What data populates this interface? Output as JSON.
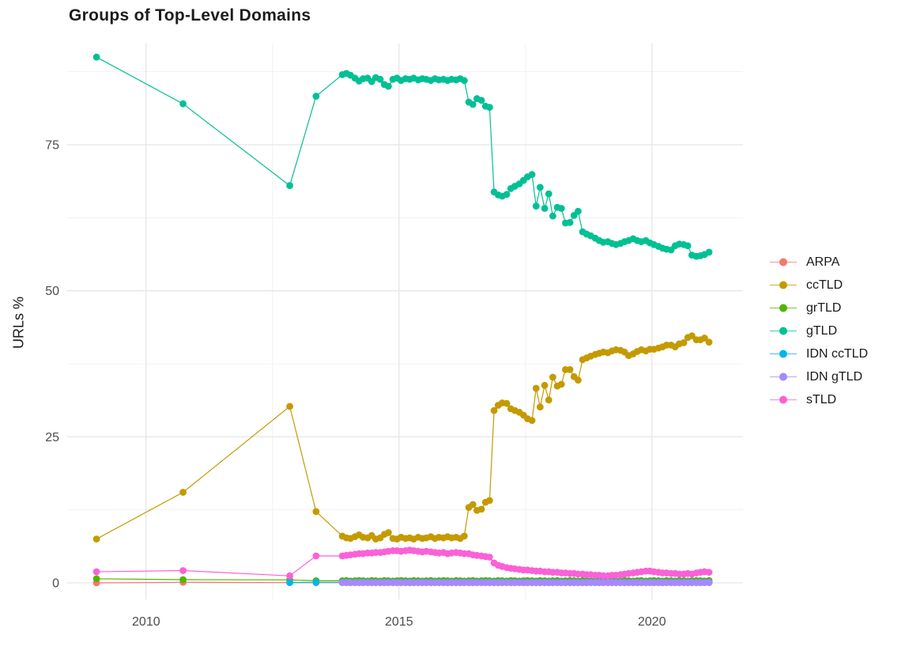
{
  "chart_data": {
    "type": "line",
    "title": "Groups of Top-Level Domains",
    "xlabel": "",
    "ylabel": "URLs %",
    "x_ticks": [
      2010,
      2015,
      2020
    ],
    "y_ticks": [
      0,
      25,
      50,
      75
    ],
    "x_minor": [
      2012.5,
      2017.5
    ],
    "y_minor": [
      12.5,
      37.5,
      62.5,
      87.5
    ],
    "xlim": [
      2008.44,
      2021.8
    ],
    "ylim": [
      -2.84,
      92.33
    ],
    "grid": "major+minor",
    "legend_position": "right",
    "background": "#FFFFFF",
    "grid_major_color": "#E6E6E6",
    "grid_minor_color": "#F1F1F1",
    "x_dense": [
      2013.88,
      2013.96,
      2014.04,
      2014.13,
      2014.21,
      2014.29,
      2014.38,
      2014.46,
      2014.54,
      2014.63,
      2014.71,
      2014.79,
      2014.88,
      2014.96,
      2015.04,
      2015.13,
      2015.21,
      2015.29,
      2015.38,
      2015.46,
      2015.54,
      2015.63,
      2015.71,
      2015.79,
      2015.88,
      2015.96,
      2016.04,
      2016.13,
      2016.21,
      2016.29,
      2016.38,
      2016.46,
      2016.54,
      2016.63,
      2016.71,
      2016.79,
      2016.88,
      2016.96,
      2017.04,
      2017.13,
      2017.21,
      2017.29,
      2017.38,
      2017.46,
      2017.54,
      2017.63,
      2017.71,
      2017.79,
      2017.88,
      2017.96,
      2018.04,
      2018.13,
      2018.21,
      2018.29,
      2018.38,
      2018.46,
      2018.54,
      2018.63,
      2018.71,
      2018.79,
      2018.88,
      2018.96,
      2019.04,
      2019.13,
      2019.21,
      2019.29,
      2019.38,
      2019.46,
      2019.54,
      2019.63,
      2019.71,
      2019.79,
      2019.88,
      2019.96,
      2020.04,
      2020.13,
      2020.21,
      2020.29,
      2020.38,
      2020.46,
      2020.54,
      2020.63,
      2020.71,
      2020.79,
      2020.88,
      2020.96,
      2021.04,
      2021.13
    ],
    "series": [
      {
        "name": "ARPA",
        "color": "#F8766D",
        "x_sparse": [
          2009.02,
          2010.73,
          2012.84,
          2013.36
        ],
        "y_sparse": [
          0.0,
          0.1,
          0.05,
          0.03
        ],
        "y_dense": {
          "const": 0.03,
          "n": 88
        }
      },
      {
        "name": "ccTLD",
        "color": "#C49A00",
        "x_sparse": [
          2009.02,
          2010.73,
          2012.84,
          2013.36
        ],
        "y_sparse": [
          7.5,
          15.5,
          30.2,
          12.2
        ],
        "y_dense": [
          8.0,
          7.7,
          7.6,
          7.9,
          8.2,
          7.8,
          7.7,
          8.1,
          7.5,
          7.7,
          8.3,
          8.6,
          7.6,
          7.5,
          7.8,
          7.6,
          7.7,
          7.5,
          7.8,
          7.6,
          7.7,
          7.9,
          7.6,
          7.8,
          7.7,
          7.9,
          7.7,
          7.8,
          7.6,
          8.0,
          12.9,
          13.4,
          12.4,
          12.6,
          13.8,
          14.1,
          29.5,
          30.4,
          30.8,
          30.7,
          29.8,
          29.5,
          29.2,
          28.7,
          28.1,
          27.8,
          33.3,
          30.1,
          33.8,
          31.3,
          35.2,
          33.7,
          34.0,
          36.5,
          36.5,
          35.3,
          34.7,
          38.2,
          38.5,
          38.8,
          39.1,
          39.3,
          39.5,
          39.4,
          39.7,
          39.9,
          39.8,
          39.5,
          38.9,
          39.2,
          39.6,
          39.9,
          39.7,
          40.0,
          40.0,
          40.2,
          40.4,
          40.7,
          40.7,
          40.4,
          40.9,
          41.1,
          42.0,
          42.3,
          41.6,
          41.6,
          41.9,
          41.2
        ]
      },
      {
        "name": "grTLD",
        "color": "#53B400",
        "x_sparse": [
          2009.02,
          2010.73,
          2012.84,
          2013.36
        ],
        "y_sparse": [
          0.7,
          0.55,
          0.5,
          0.35
        ],
        "y_dense": [
          0.35,
          0.4,
          0.3,
          0.35,
          0.4,
          0.35,
          0.3,
          0.4,
          0.35,
          0.3,
          0.4,
          0.35,
          0.3,
          0.35,
          0.4,
          0.35,
          0.3,
          0.4,
          0.35,
          0.3,
          0.35,
          0.4,
          0.3,
          0.35,
          0.4,
          0.35,
          0.3,
          0.4,
          0.35,
          0.3,
          0.35,
          0.4,
          0.3,
          0.35,
          0.4,
          0.35,
          0.3,
          0.4,
          0.35,
          0.3,
          0.4,
          0.35,
          0.3,
          0.35,
          0.4,
          0.35,
          0.3,
          0.4,
          0.35,
          0.3,
          0.35,
          0.4,
          0.3,
          0.35,
          0.4,
          0.35,
          0.3,
          0.4,
          0.35,
          0.3,
          0.4,
          0.35,
          0.3,
          0.35,
          0.4,
          0.35,
          0.3,
          0.4,
          0.35,
          0.3,
          0.35,
          0.4,
          0.3,
          0.35,
          0.4,
          0.35,
          0.3,
          0.4,
          0.35,
          0.3,
          0.4,
          0.35,
          0.3,
          0.35,
          0.4,
          0.35,
          0.3,
          0.4
        ]
      },
      {
        "name": "gTLD",
        "color": "#00C094",
        "x_sparse": [
          2009.02,
          2010.73,
          2012.84,
          2013.36
        ],
        "y_sparse": [
          90.0,
          82.0,
          68.0,
          83.3
        ],
        "y_dense": [
          87.0,
          87.2,
          86.9,
          86.4,
          85.9,
          86.3,
          86.4,
          85.8,
          86.5,
          86.2,
          85.3,
          85.0,
          86.2,
          86.4,
          86.0,
          86.3,
          86.2,
          86.4,
          86.1,
          86.3,
          86.2,
          86.0,
          86.3,
          86.1,
          86.2,
          86.0,
          86.2,
          86.1,
          86.3,
          86.0,
          82.3,
          81.9,
          82.9,
          82.6,
          81.6,
          81.4,
          66.9,
          66.4,
          66.2,
          66.5,
          67.5,
          67.9,
          68.3,
          68.9,
          69.5,
          69.9,
          64.5,
          67.7,
          64.1,
          66.6,
          62.8,
          64.3,
          64.1,
          61.6,
          61.7,
          62.9,
          63.6,
          60.1,
          59.7,
          59.4,
          59.0,
          58.6,
          58.3,
          58.4,
          58.1,
          57.9,
          58.1,
          58.4,
          58.6,
          58.9,
          58.6,
          58.4,
          58.6,
          58.2,
          57.9,
          57.6,
          57.3,
          57.1,
          57.0,
          57.7,
          58.0,
          57.9,
          57.7,
          56.1,
          55.9,
          56.0,
          56.2,
          56.6
        ]
      },
      {
        "name": "IDN ccTLD",
        "color": "#00B6EB",
        "x_sparse": [
          2012.84,
          2013.36
        ],
        "y_sparse": [
          0.05,
          0.1
        ],
        "y_dense": {
          "const": 0.1,
          "n": 88
        }
      },
      {
        "name": "IDN gTLD",
        "color": "#A58AFF",
        "x_sparse": [],
        "y_sparse": [],
        "y_dense": {
          "const": 0.05,
          "n": 88
        }
      },
      {
        "name": "sTLD",
        "color": "#FB61D7",
        "x_sparse": [
          2009.02,
          2010.73,
          2012.84,
          2013.36
        ],
        "y_sparse": [
          1.9,
          2.1,
          1.2,
          4.6
        ],
        "y_dense": [
          4.6,
          4.7,
          4.8,
          4.9,
          5.0,
          5.0,
          5.1,
          5.1,
          5.2,
          5.2,
          5.3,
          5.4,
          5.5,
          5.5,
          5.4,
          5.5,
          5.6,
          5.5,
          5.4,
          5.3,
          5.4,
          5.3,
          5.2,
          5.1,
          5.2,
          5.0,
          5.1,
          5.2,
          5.1,
          5.0,
          5.0,
          4.8,
          4.7,
          4.6,
          4.5,
          4.4,
          3.4,
          3.0,
          2.8,
          2.6,
          2.5,
          2.4,
          2.3,
          2.2,
          2.2,
          2.1,
          2.0,
          2.0,
          1.9,
          1.9,
          1.8,
          1.8,
          1.7,
          1.7,
          1.6,
          1.6,
          1.5,
          1.5,
          1.4,
          1.4,
          1.3,
          1.3,
          1.2,
          1.2,
          1.3,
          1.3,
          1.4,
          1.5,
          1.6,
          1.7,
          1.8,
          1.9,
          2.0,
          2.0,
          1.9,
          1.8,
          1.7,
          1.7,
          1.6,
          1.6,
          1.5,
          1.5,
          1.6,
          1.5,
          1.7,
          1.8,
          1.9,
          1.8
        ]
      }
    ]
  }
}
